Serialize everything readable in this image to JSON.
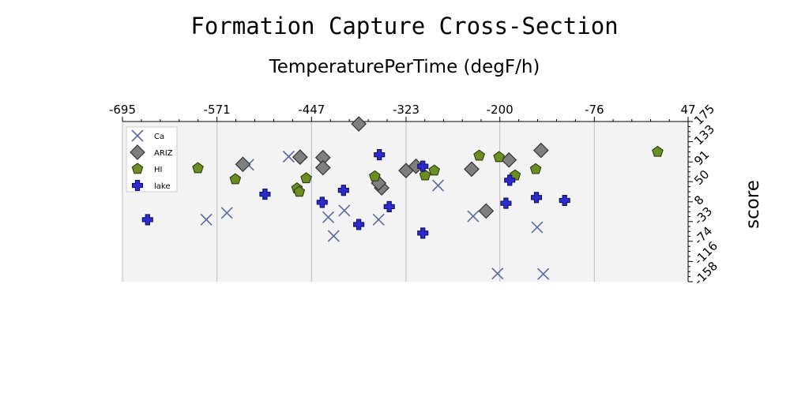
{
  "chart_data": {
    "type": "scatter",
    "title": "Formation Capture Cross-Section",
    "xlabel": "TemperaturePerTime (degF/h)",
    "ylabel": "score",
    "x_ticks": [
      -695,
      -571,
      -447,
      -323,
      -200,
      -76,
      47
    ],
    "y_ticks": [
      -158,
      -116,
      -74,
      -33,
      8,
      50,
      91,
      133,
      175
    ],
    "xlim": [
      -695,
      47
    ],
    "ylim": [
      -158,
      175
    ],
    "x_axis_position": "top",
    "y_axis_position": "right",
    "grid": "vertical",
    "legend": "top-left",
    "series": [
      {
        "name": "Ca",
        "marker": "x",
        "color": "#5b6aa0",
        "points": [
          [
            -585,
            -29
          ],
          [
            -558,
            -15
          ],
          [
            -530,
            85
          ],
          [
            -477,
            102
          ],
          [
            -425,
            -24
          ],
          [
            -418,
            -63
          ],
          [
            -404,
            -10
          ],
          [
            -359,
            -29
          ],
          [
            -281,
            42
          ],
          [
            -235,
            -22
          ],
          [
            -203,
            -141
          ],
          [
            -151,
            -45
          ],
          [
            -143,
            -142
          ]
        ]
      },
      {
        "name": "ARIZ",
        "marker": "diamond",
        "color": "#7f7f7f",
        "points": [
          [
            -385,
            170
          ],
          [
            -537,
            86
          ],
          [
            -462,
            101
          ],
          [
            -432,
            100
          ],
          [
            -432,
            79
          ],
          [
            -355,
            37
          ],
          [
            -359,
            47
          ],
          [
            -323,
            73
          ],
          [
            -310,
            82
          ],
          [
            -237,
            76
          ],
          [
            -218,
            -11
          ],
          [
            -188,
            95
          ],
          [
            -146,
            115
          ]
        ]
      },
      {
        "name": "HI",
        "marker": "pentagon",
        "color": "#6b8e23",
        "points": [
          [
            -596,
            78
          ],
          [
            -547,
            55
          ],
          [
            -466,
            36
          ],
          [
            -463,
            29
          ],
          [
            -454,
            57
          ],
          [
            -364,
            61
          ],
          [
            -298,
            63
          ],
          [
            -286,
            73
          ],
          [
            -227,
            104
          ],
          [
            -201,
            101
          ],
          [
            -180,
            63
          ],
          [
            -153,
            76
          ],
          [
            7,
            112
          ]
        ]
      },
      {
        "name": "lake",
        "marker": "plus",
        "color": "#2b2bd0",
        "points": [
          [
            -662,
            -29
          ],
          [
            -508,
            24
          ],
          [
            -433,
            7
          ],
          [
            -405,
            32
          ],
          [
            -385,
            -39
          ],
          [
            -358,
            106
          ],
          [
            -345,
            -2
          ],
          [
            -301,
            82
          ],
          [
            -301,
            -57
          ],
          [
            -187,
            53
          ],
          [
            -192,
            5
          ],
          [
            -152,
            17
          ],
          [
            -115,
            11
          ]
        ]
      }
    ]
  }
}
